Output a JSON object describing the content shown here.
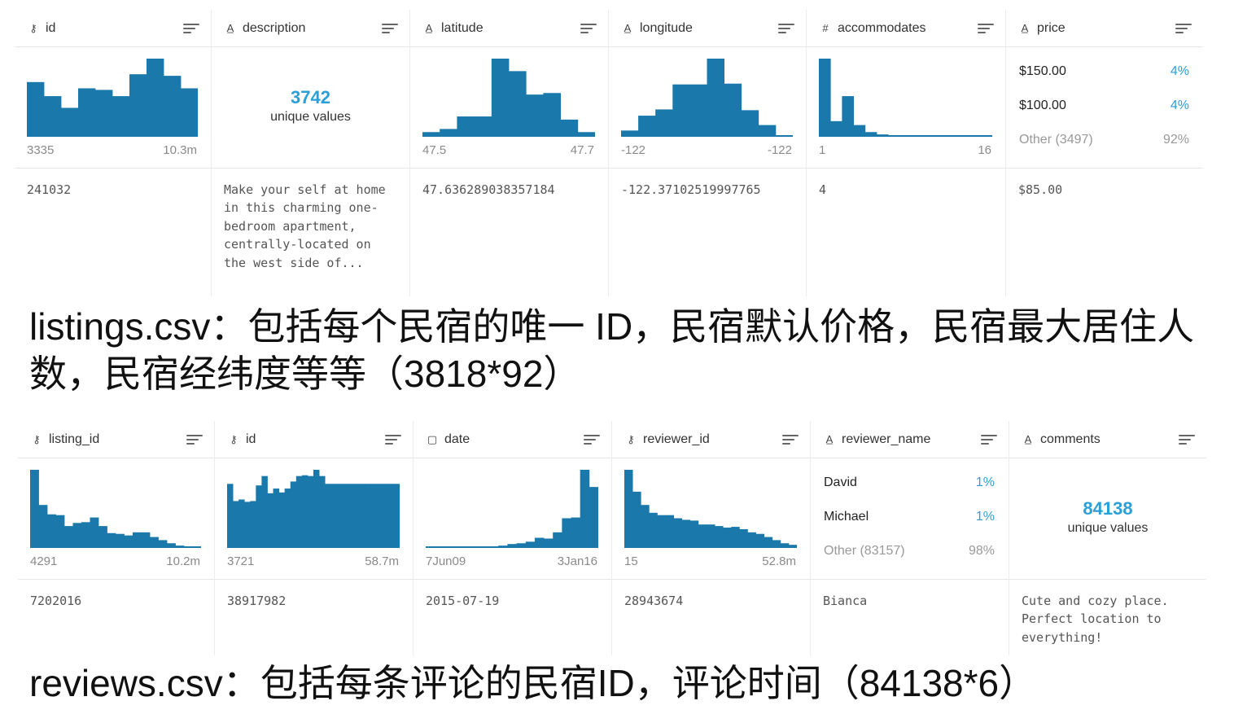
{
  "listings": {
    "caption": "listings.csv：包括每个民宿的唯一 ID，民宿默认价格，民宿最大居住人数，民宿经纬度等等（3818*92）",
    "columns": [
      {
        "name": "id",
        "type_icon": "key-icon",
        "summary": "hist",
        "hist": [
          0.7,
          0.52,
          0.37,
          0.62,
          0.6,
          0.52,
          0.8,
          1.0,
          0.78,
          0.62
        ],
        "min": "3335",
        "max": "10.3m",
        "value": "241032"
      },
      {
        "name": "description",
        "type_icon": "text-type-icon",
        "summary": "unique",
        "unique_count": "3742",
        "unique_label": "unique values",
        "value": "Make your self at home in this charming one-bedroom apartment, centrally-located on the west side of..."
      },
      {
        "name": "latitude",
        "type_icon": "text-type-icon",
        "summary": "hist",
        "hist": [
          0.06,
          0.1,
          0.26,
          0.26,
          1.0,
          0.84,
          0.54,
          0.56,
          0.22,
          0.06
        ],
        "min": "47.5",
        "max": "47.7",
        "value": "47.636289038357184"
      },
      {
        "name": "longitude",
        "type_icon": "text-type-icon",
        "summary": "hist",
        "hist": [
          0.08,
          0.27,
          0.35,
          0.67,
          0.67,
          1.0,
          0.68,
          0.34,
          0.15,
          0.02
        ],
        "min": "-122",
        "max": "-122",
        "value": "-122.37102519997765"
      },
      {
        "name": "accommodates",
        "type_icon": "hash-icon",
        "summary": "hist",
        "hist": [
          1.0,
          0.2,
          0.52,
          0.15,
          0.06,
          0.03,
          0.02,
          0.01,
          0.01,
          0.01,
          0.01,
          0.01,
          0.01,
          0.005,
          0.005
        ],
        "min": "1",
        "max": "16",
        "value": "4"
      },
      {
        "name": "price",
        "type_icon": "text-type-icon",
        "summary": "top",
        "top": [
          {
            "label": "$150.00",
            "pct": "4%"
          },
          {
            "label": "$100.00",
            "pct": "4%"
          }
        ],
        "other": {
          "label": "Other (3497)",
          "pct": "92%"
        },
        "value": "$85.00"
      }
    ]
  },
  "reviews": {
    "caption": "reviews.csv：包括每条评论的民宿ID，评论时间（84138*6）",
    "columns": [
      {
        "name": "listing_id",
        "type_icon": "key-icon",
        "summary": "hist",
        "hist": [
          1.0,
          0.55,
          0.43,
          0.42,
          0.28,
          0.32,
          0.33,
          0.39,
          0.28,
          0.19,
          0.18,
          0.16,
          0.2,
          0.2,
          0.14,
          0.1,
          0.06,
          0.03,
          0.02,
          0.01
        ],
        "min": "4291",
        "max": "10.2m",
        "value": "7202016"
      },
      {
        "name": "id",
        "type_icon": "key-icon",
        "summary": "hist",
        "hist": [
          0.82,
          0.6,
          0.62,
          0.59,
          0.6,
          0.8,
          0.92,
          0.7,
          0.76,
          0.71,
          0.76,
          0.85,
          0.92,
          0.93,
          0.92,
          1.0,
          0.92,
          0.82,
          0.82,
          0.82,
          0.82,
          0.82,
          0.82,
          0.82,
          0.82,
          0.82,
          0.82,
          0.82,
          0.82,
          0.82
        ],
        "min": "3721",
        "max": "58.7m",
        "value": "38917982"
      },
      {
        "name": "date",
        "type_icon": "calendar-icon",
        "summary": "hist",
        "hist": [
          0.005,
          0.005,
          0.005,
          0.005,
          0.005,
          0.01,
          0.01,
          0.02,
          0.03,
          0.05,
          0.06,
          0.08,
          0.13,
          0.12,
          0.2,
          0.38,
          0.39,
          1.0,
          0.78
        ],
        "min": "7Jun09",
        "max": "3Jan16",
        "value": "2015-07-19"
      },
      {
        "name": "reviewer_id",
        "type_icon": "key-icon",
        "summary": "hist",
        "hist": [
          1.0,
          0.72,
          0.55,
          0.45,
          0.42,
          0.42,
          0.38,
          0.36,
          0.35,
          0.3,
          0.3,
          0.28,
          0.26,
          0.27,
          0.24,
          0.2,
          0.18,
          0.14,
          0.1,
          0.06,
          0.04
        ],
        "min": "15",
        "max": "52.8m",
        "value": "28943674"
      },
      {
        "name": "reviewer_name",
        "type_icon": "text-type-icon",
        "summary": "top",
        "top": [
          {
            "label": "David",
            "pct": "1%"
          },
          {
            "label": "Michael",
            "pct": "1%"
          }
        ],
        "other": {
          "label": "Other (83157)",
          "pct": "98%"
        },
        "value": "Bianca"
      },
      {
        "name": "comments",
        "type_icon": "text-type-icon",
        "summary": "unique",
        "unique_count": "84138",
        "unique_label": "unique values",
        "value": "Cute and cozy place. Perfect location to everything!"
      }
    ]
  },
  "colors": {
    "bar": "#1a78ab",
    "accent": "#2a9fd8"
  }
}
